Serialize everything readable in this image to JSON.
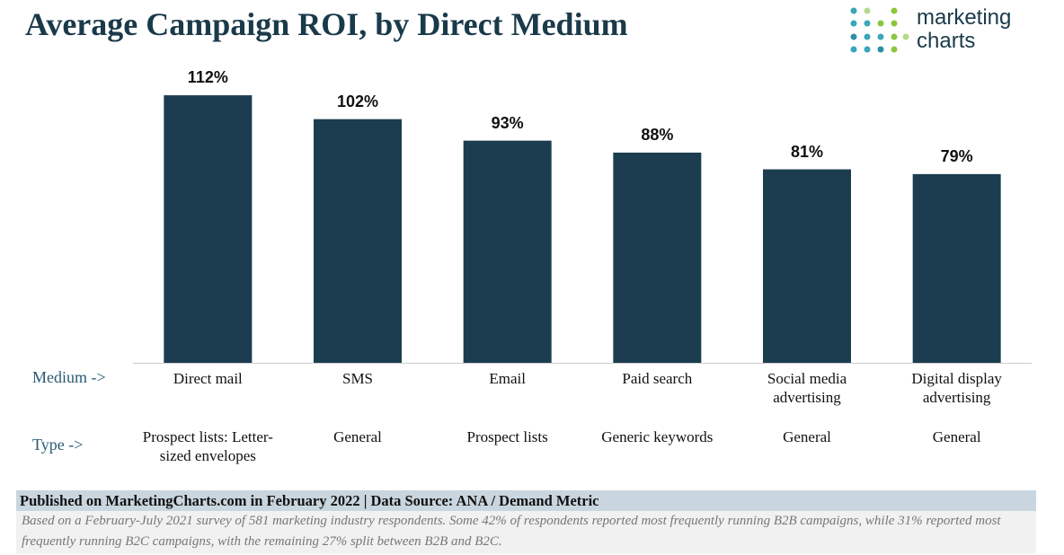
{
  "chart_data": {
    "type": "bar",
    "title": "Average Campaign ROI, by Direct Medium",
    "logo": [
      "marketing",
      "charts"
    ],
    "row_labels": [
      "Medium ->",
      "Type ->"
    ],
    "categories": [
      "Direct mail",
      "SMS",
      "Email",
      "Paid search",
      "Social media advertising",
      "Digital display advertising"
    ],
    "types": [
      "Prospect lists: Letter-sized envelopes",
      "General",
      "Prospect lists",
      "Generic keywords",
      "General",
      "General"
    ],
    "values": [
      112,
      102,
      93,
      88,
      81,
      79
    ],
    "value_labels": [
      "112%",
      "102%",
      "93%",
      "88%",
      "81%",
      "79%"
    ],
    "color": "#1b3d4f",
    "source": "Published on MarketingCharts.com in February 2022 | Data Source: ANA / Demand Metric",
    "note": "Based on a February-July 2021 survey of 581 marketing industry respondents. Some 42% of respondents reported most frequently running B2B campaigns, while 31% reported most frequently running B2C campaigns, with the remaining 27% split between B2B and B2C."
  }
}
